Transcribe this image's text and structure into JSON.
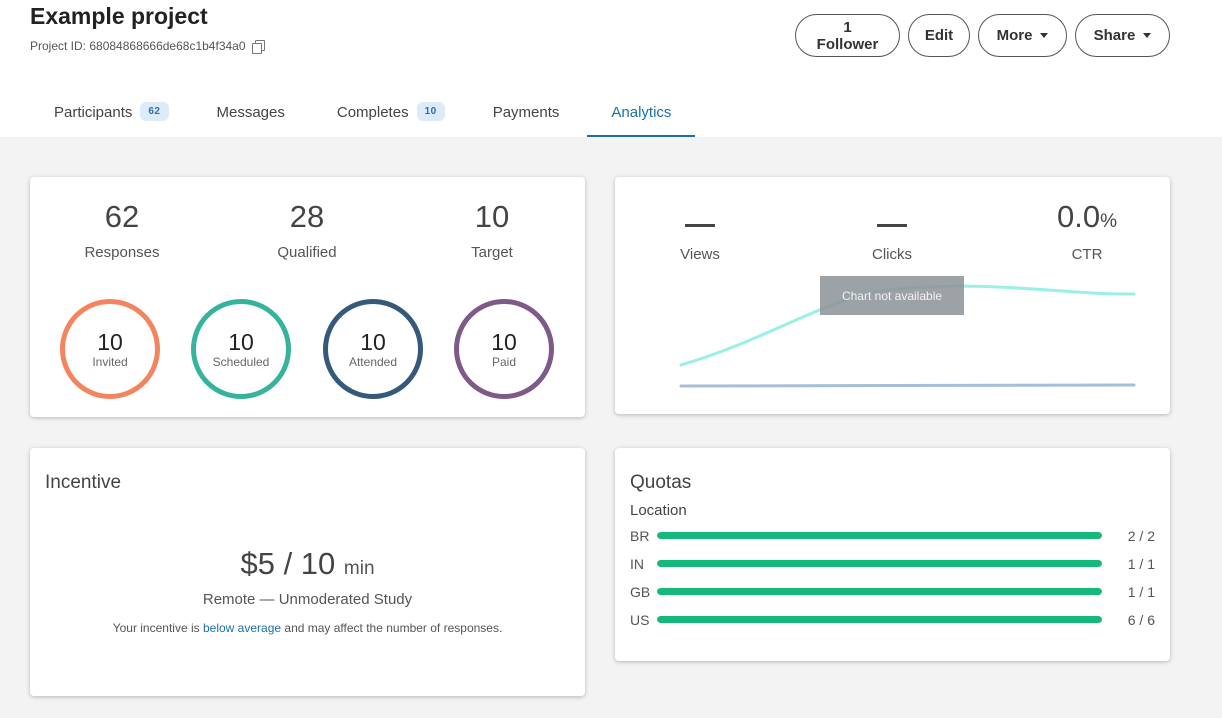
{
  "header": {
    "title": "Example project",
    "project_id": "Project ID: 68084868666de68c1b4f34a0",
    "buttons": {
      "follower": "1 Follower",
      "edit": "Edit",
      "more": "More",
      "share": "Share"
    }
  },
  "tabs": [
    {
      "label": "Participants",
      "badge": "62"
    },
    {
      "label": "Messages"
    },
    {
      "label": "Completes",
      "badge": "10"
    },
    {
      "label": "Payments"
    },
    {
      "label": "Analytics",
      "active": true
    }
  ],
  "stats": {
    "responses": {
      "value": "62",
      "label": "Responses"
    },
    "qualified": {
      "value": "28",
      "label": "Qualified"
    },
    "target": {
      "value": "10",
      "label": "Target"
    }
  },
  "rings": [
    {
      "value": "10",
      "label": "Invited",
      "color": "#f4845f"
    },
    {
      "value": "10",
      "label": "Scheduled",
      "color": "#36b39c"
    },
    {
      "value": "10",
      "label": "Attended",
      "color": "#34597b"
    },
    {
      "value": "10",
      "label": "Paid",
      "color": "#7d5a87"
    }
  ],
  "analytics": {
    "views": {
      "value": "—",
      "label": "Views"
    },
    "clicks": {
      "value": "—",
      "label": "Clicks"
    },
    "ctr": {
      "value": "0.0",
      "unit": "%",
      "label": "CTR"
    },
    "chart_message": "Chart not available",
    "line_colors": {
      "upper": "#9af0e6",
      "lower": "#a7bfd6"
    }
  },
  "incentive": {
    "title": "Incentive",
    "amount": "$5 / 10",
    "unit": "min",
    "study_type": "Remote — Unmoderated Study",
    "note_prefix": "Your incentive is",
    "note_link": "below average",
    "note_suffix": "and may affect the number of responses."
  },
  "quotas": {
    "title": "Quotas",
    "subtitle": "Location",
    "bar_color": "#15b97b",
    "rows": [
      {
        "code": "BR",
        "count": "2 / 2",
        "fraction": 1.0
      },
      {
        "code": "IN",
        "count": "1 / 1",
        "fraction": 1.0
      },
      {
        "code": "GB",
        "count": "1 / 1",
        "fraction": 1.0
      },
      {
        "code": "US",
        "count": "6 / 6",
        "fraction": 1.0
      }
    ]
  }
}
